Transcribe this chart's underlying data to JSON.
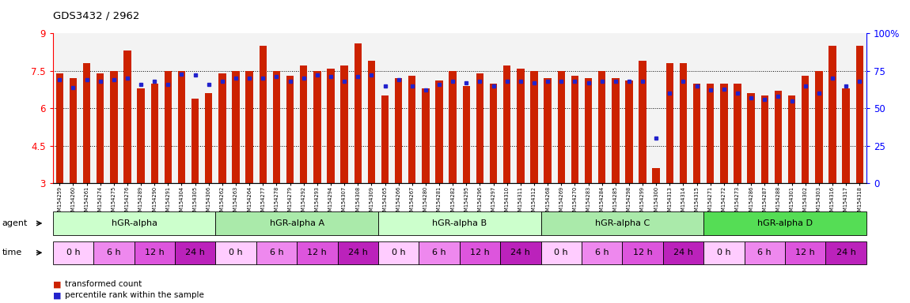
{
  "title": "GDS3432 / 2962",
  "samples": [
    "GSM154259",
    "GSM154260",
    "GSM154261",
    "GSM154274",
    "GSM154275",
    "GSM154276",
    "GSM154289",
    "GSM154290",
    "GSM154291",
    "GSM154304",
    "GSM154305",
    "GSM154306",
    "GSM154262",
    "GSM154263",
    "GSM154264",
    "GSM154277",
    "GSM154278",
    "GSM154279",
    "GSM154292",
    "GSM154293",
    "GSM154294",
    "GSM154307",
    "GSM154308",
    "GSM154309",
    "GSM154265",
    "GSM154266",
    "GSM154267",
    "GSM154280",
    "GSM154281",
    "GSM154282",
    "GSM154295",
    "GSM154296",
    "GSM154297",
    "GSM154310",
    "GSM154311",
    "GSM154312",
    "GSM154268",
    "GSM154269",
    "GSM154270",
    "GSM154283",
    "GSM154284",
    "GSM154285",
    "GSM154298",
    "GSM154299",
    "GSM154300",
    "GSM154313",
    "GSM154314",
    "GSM154315",
    "GSM154271",
    "GSM154272",
    "GSM154273",
    "GSM154286",
    "GSM154287",
    "GSM154288",
    "GSM154301",
    "GSM154302",
    "GSM154303",
    "GSM154316",
    "GSM154317",
    "GSM154318"
  ],
  "red_values": [
    7.4,
    7.2,
    7.8,
    7.4,
    7.5,
    8.3,
    6.8,
    7.0,
    7.5,
    7.5,
    6.4,
    6.6,
    7.4,
    7.5,
    7.5,
    8.5,
    7.5,
    7.3,
    7.7,
    7.5,
    7.6,
    7.7,
    8.6,
    7.9,
    6.5,
    7.2,
    7.3,
    6.8,
    7.1,
    7.5,
    6.9,
    7.4,
    7.0,
    7.7,
    7.6,
    7.5,
    7.2,
    7.5,
    7.3,
    7.2,
    7.5,
    7.2,
    7.1,
    7.9,
    3.6,
    7.8,
    7.8,
    7.0,
    7.0,
    7.0,
    7.0,
    6.6,
    6.5,
    6.7,
    6.5,
    7.3,
    7.5,
    8.5,
    6.8,
    8.5
  ],
  "blue_values": [
    69,
    64,
    69,
    68,
    69,
    70,
    66,
    68,
    66,
    73,
    72,
    66,
    68,
    70,
    70,
    70,
    71,
    68,
    70,
    72,
    71,
    68,
    71,
    72,
    65,
    69,
    65,
    62,
    66,
    68,
    67,
    68,
    65,
    68,
    68,
    67,
    68,
    68,
    68,
    67,
    68,
    68,
    68,
    68,
    30,
    60,
    68,
    65,
    62,
    63,
    60,
    57,
    56,
    58,
    55,
    65,
    60,
    70,
    65,
    68
  ],
  "agent_groups": [
    {
      "label": "hGR-alpha",
      "start": 0,
      "end": 12,
      "color": "#ccffcc"
    },
    {
      "label": "hGR-alpha A",
      "start": 12,
      "end": 24,
      "color": "#aaeaaa"
    },
    {
      "label": "hGR-alpha B",
      "start": 24,
      "end": 36,
      "color": "#ccffcc"
    },
    {
      "label": "hGR-alpha C",
      "start": 36,
      "end": 48,
      "color": "#aaeaaa"
    },
    {
      "label": "hGR-alpha D",
      "start": 48,
      "end": 60,
      "color": "#55dd55"
    }
  ],
  "time_colors": [
    "#ffccff",
    "#ee88ee",
    "#dd55dd",
    "#bb22bb"
  ],
  "time_labels": [
    "0 h",
    "6 h",
    "12 h",
    "24 h"
  ],
  "ymin": 3.0,
  "ymax": 9.0,
  "yticks_left": [
    3.0,
    4.5,
    6.0,
    7.5,
    9.0
  ],
  "yticks_right": [
    0,
    25,
    50,
    75,
    100
  ],
  "grid_lines": [
    4.5,
    6.0,
    7.5
  ],
  "bar_color": "#cc2200",
  "dot_color": "#2222cc",
  "bar_width": 0.55,
  "sample_bg_color": "#e8e8e8",
  "legend_items": [
    {
      "label": "transformed count",
      "color": "#cc2200"
    },
    {
      "label": "percentile rank within the sample",
      "color": "#2222cc"
    }
  ]
}
